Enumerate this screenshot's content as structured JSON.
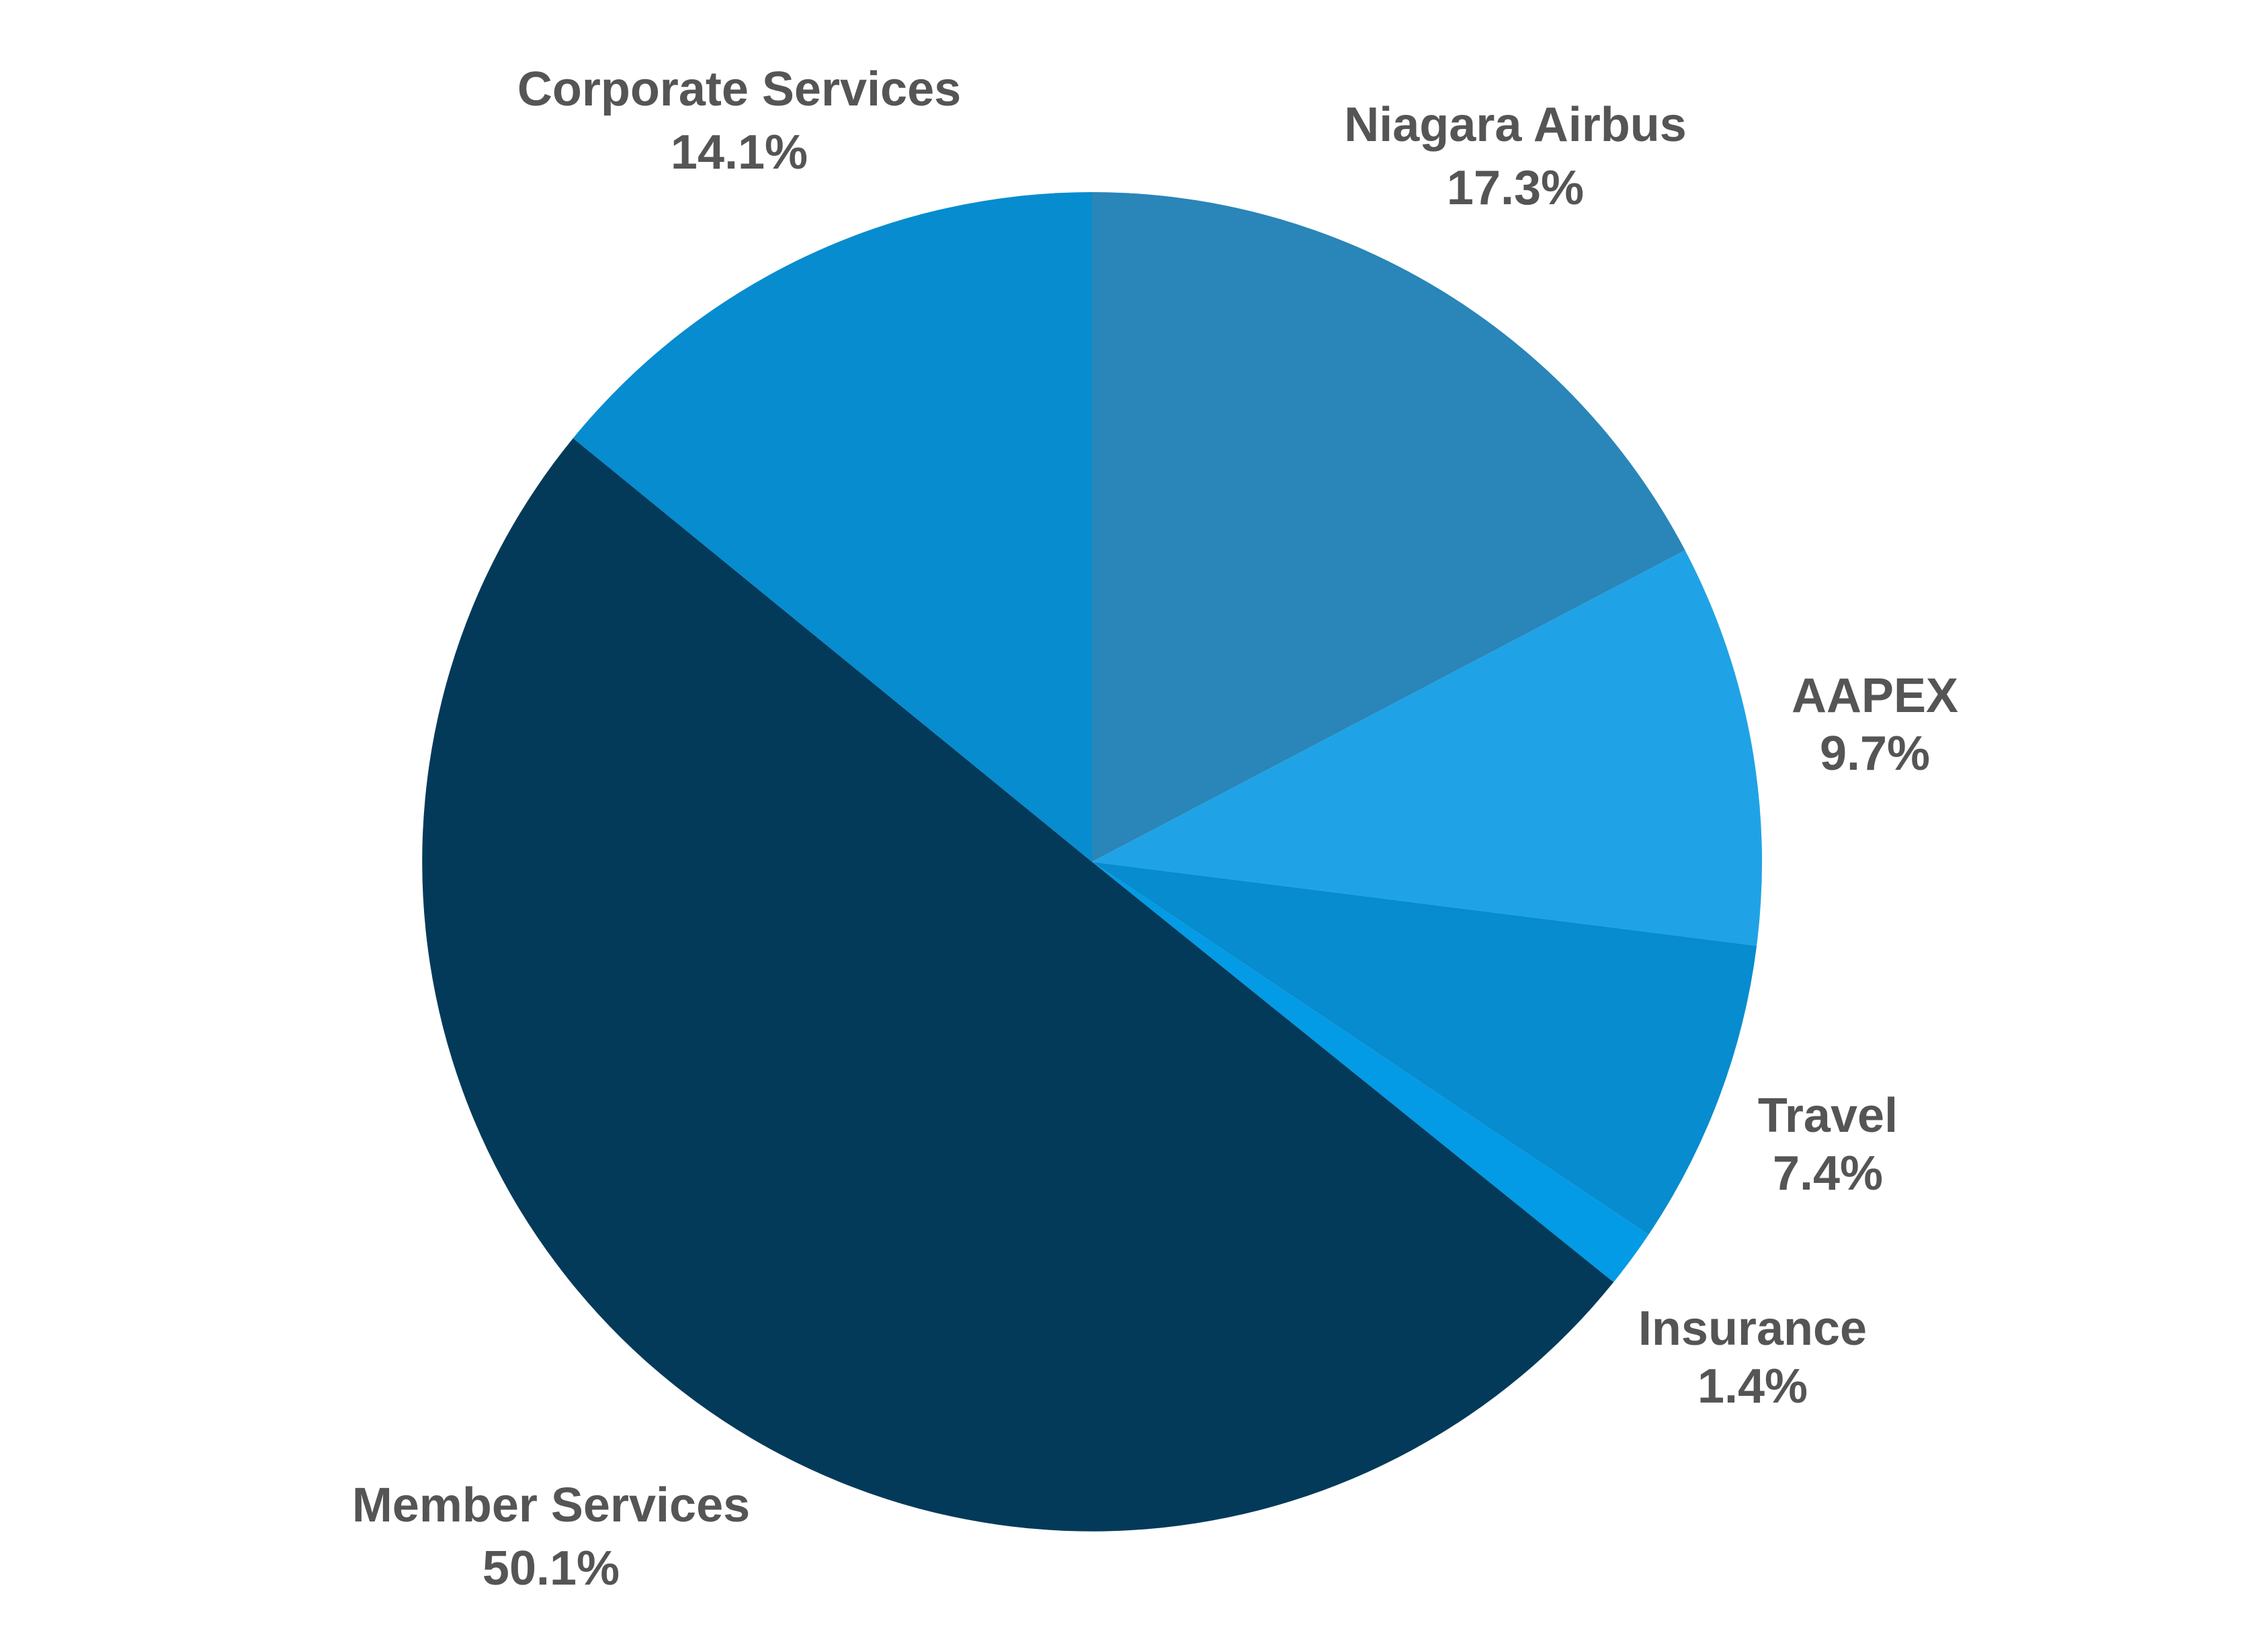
{
  "chart_data": {
    "type": "pie",
    "title": "",
    "start_angle_deg": 0,
    "direction": "clockwise",
    "slices": [
      {
        "label": "Niagara Airbus",
        "percent_text": "17.3%",
        "value": 17.3,
        "color": "#2a85b8"
      },
      {
        "label": "AAPEX",
        "percent_text": "9.7%",
        "value": 9.7,
        "color": "#1fa3e6"
      },
      {
        "label": "Travel",
        "percent_text": "7.4%",
        "value": 7.4,
        "color": "#068ccf"
      },
      {
        "label": "Insurance",
        "percent_text": "1.4%",
        "value": 1.4,
        "color": "#039be5"
      },
      {
        "label": "Member Services",
        "percent_text": "50.1%",
        "value": 50.1,
        "color": "#033a5a"
      },
      {
        "label": "Corporate Services",
        "percent_text": "14.1%",
        "value": 14.1,
        "color": "#068ccf"
      }
    ]
  }
}
